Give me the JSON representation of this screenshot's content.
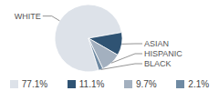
{
  "chart_data": {
    "type": "pie",
    "categories": [
      "WHITE",
      "ASIAN",
      "HISPANIC",
      "BLACK"
    ],
    "values": [
      77.1,
      11.1,
      9.7,
      2.1
    ],
    "value_labels": [
      "77.1%",
      "11.1%",
      "9.7%",
      "2.1%"
    ],
    "colors": [
      "#dde2e9",
      "#2f5373",
      "#a3b0bf",
      "#6f8aa3"
    ],
    "legend": "bottom"
  }
}
